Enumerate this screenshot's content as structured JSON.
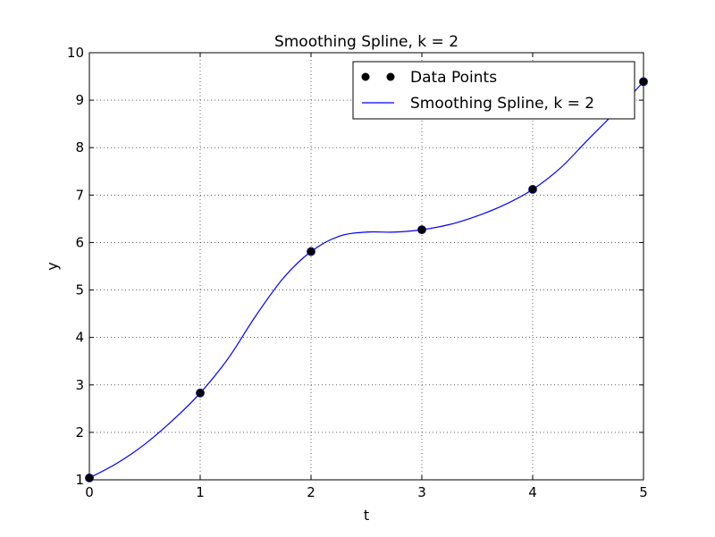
{
  "chart_data": {
    "type": "line",
    "title": "Smoothing Spline, k = 2",
    "xlabel": "t",
    "ylabel": "y",
    "xlim": [
      0,
      5
    ],
    "ylim": [
      1,
      10
    ],
    "xticks": [
      0,
      1,
      2,
      3,
      4,
      5
    ],
    "yticks": [
      1,
      2,
      3,
      4,
      5,
      6,
      7,
      8,
      9,
      10
    ],
    "grid": true,
    "legend_position": "top-right",
    "series": [
      {
        "name": "Data Points",
        "kind": "markers",
        "color": "#000000",
        "x": [
          0,
          1,
          2,
          3,
          4,
          5
        ],
        "y": [
          1.04,
          2.83,
          5.81,
          6.27,
          7.12,
          9.39
        ]
      },
      {
        "name": "Smoothing Spline, k = 2",
        "kind": "line",
        "color": "#0000ff",
        "x": [
          0,
          0.25,
          0.5,
          0.75,
          1.0,
          1.25,
          1.5,
          1.75,
          2.0,
          2.25,
          2.5,
          2.75,
          3.0,
          3.25,
          3.5,
          3.75,
          4.0,
          4.25,
          4.5,
          4.75,
          5.0
        ],
        "y": [
          1.04,
          1.35,
          1.75,
          2.25,
          2.83,
          3.55,
          4.45,
          5.25,
          5.81,
          6.13,
          6.22,
          6.22,
          6.27,
          6.38,
          6.56,
          6.8,
          7.12,
          7.57,
          8.17,
          8.76,
          9.39
        ]
      }
    ]
  }
}
